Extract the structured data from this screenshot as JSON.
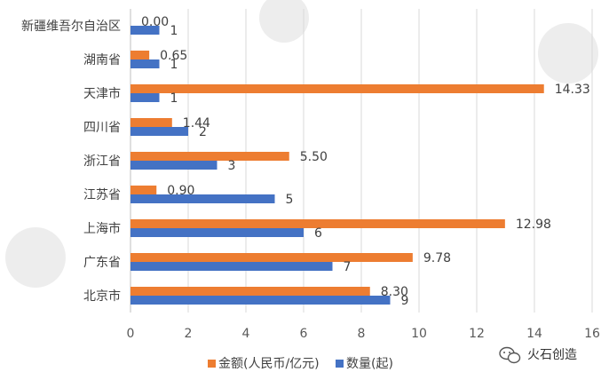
{
  "chart_data": {
    "type": "bar",
    "orientation": "horizontal",
    "categories": [
      "新疆维吾尔自治区",
      "湖南省",
      "天津市",
      "四川省",
      "浙江省",
      "江苏省",
      "上海市",
      "广东省",
      "北京市"
    ],
    "series": [
      {
        "name": "金额(人民币/亿元)",
        "color": "#ED7D31",
        "values": [
          0.0,
          0.65,
          14.33,
          1.44,
          5.5,
          0.9,
          12.98,
          9.78,
          8.3
        ],
        "labels": [
          "0.00",
          "0.65",
          "14.33",
          "1.44",
          "5.50",
          "0.90",
          "12.98",
          "9.78",
          "8.30"
        ]
      },
      {
        "name": "数量(起)",
        "color": "#4472C4",
        "values": [
          1,
          1,
          1,
          2,
          3,
          5,
          6,
          7,
          9
        ],
        "labels": [
          "1",
          "1",
          "1",
          "2",
          "3",
          "5",
          "6",
          "7",
          "9"
        ]
      }
    ],
    "xlim": [
      0,
      16
    ],
    "xticks": [
      "0",
      "2",
      "4",
      "6",
      "8",
      "10",
      "12",
      "14",
      "16"
    ],
    "grid": true,
    "legend_position": "bottom"
  },
  "watermark": {
    "text": "火石创造"
  }
}
